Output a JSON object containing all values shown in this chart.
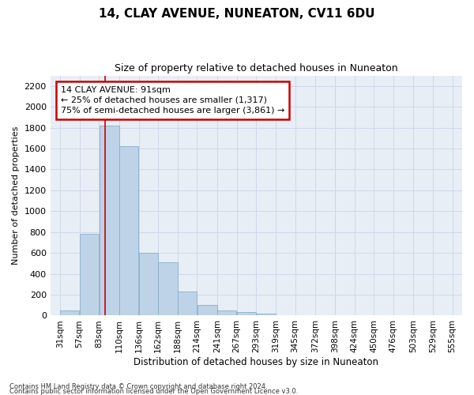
{
  "title": "14, CLAY AVENUE, NUNEATON, CV11 6DU",
  "subtitle": "Size of property relative to detached houses in Nuneaton",
  "xlabel": "Distribution of detached houses by size in Nuneaton",
  "ylabel": "Number of detached properties",
  "footer_line1": "Contains HM Land Registry data © Crown copyright and database right 2024.",
  "footer_line2": "Contains public sector information licensed under the Open Government Licence v3.0.",
  "annotation_title": "14 CLAY AVENUE: 91sqm",
  "annotation_line1": "← 25% of detached houses are smaller (1,317)",
  "annotation_line2": "75% of semi-detached houses are larger (3,861) →",
  "bar_left_edges": [
    31,
    57,
    83,
    110,
    136,
    162,
    188,
    214,
    241,
    267,
    293,
    319,
    345,
    372,
    398,
    424,
    450,
    476,
    503,
    529
  ],
  "bar_widths": [
    26,
    26,
    27,
    26,
    26,
    26,
    26,
    27,
    26,
    26,
    26,
    26,
    27,
    26,
    26,
    26,
    26,
    27,
    26,
    26
  ],
  "bar_heights": [
    50,
    780,
    1820,
    1620,
    600,
    510,
    230,
    100,
    50,
    30,
    15,
    5,
    0,
    0,
    0,
    0,
    0,
    0,
    0,
    0
  ],
  "tick_labels": [
    "31sqm",
    "57sqm",
    "83sqm",
    "110sqm",
    "136sqm",
    "162sqm",
    "188sqm",
    "214sqm",
    "241sqm",
    "267sqm",
    "293sqm",
    "319sqm",
    "345sqm",
    "372sqm",
    "398sqm",
    "424sqm",
    "450sqm",
    "476sqm",
    "503sqm",
    "529sqm",
    "555sqm"
  ],
  "tick_positions": [
    31,
    57,
    83,
    110,
    136,
    162,
    188,
    214,
    241,
    267,
    293,
    319,
    345,
    372,
    398,
    424,
    450,
    476,
    503,
    529,
    555
  ],
  "ylim": [
    0,
    2300
  ],
  "xlim": [
    18,
    568
  ],
  "bar_color": "#bed3e8",
  "bar_edge_color": "#8aaec8",
  "grid_color": "#cdd8e8",
  "background_color": "#e8eef5",
  "annotation_box_color": "#cc0000",
  "red_line_x": 91,
  "yticks": [
    0,
    200,
    400,
    600,
    800,
    1000,
    1200,
    1400,
    1600,
    1800,
    2000,
    2200
  ],
  "figsize": [
    6.0,
    5.0
  ],
  "dpi": 100
}
